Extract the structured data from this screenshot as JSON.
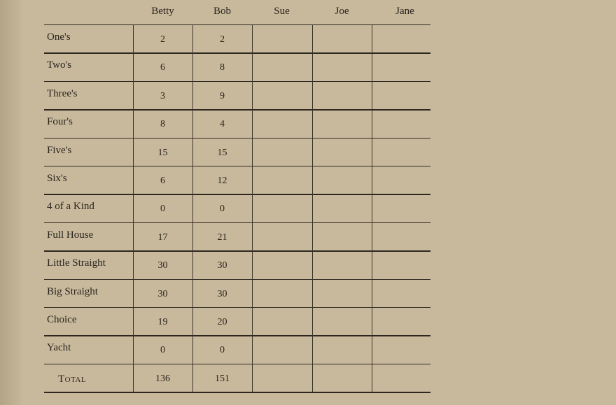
{
  "columns": [
    "Betty",
    "Bob",
    "Sue",
    "Joe",
    "Jane"
  ],
  "rows": [
    {
      "label": "One's",
      "values": [
        "2",
        "2",
        "",
        "",
        ""
      ]
    },
    {
      "label": "Two's",
      "values": [
        "6",
        "8",
        "",
        "",
        ""
      ]
    },
    {
      "label": "Three's",
      "values": [
        "3",
        "9",
        "",
        "",
        ""
      ]
    },
    {
      "label": "Four's",
      "values": [
        "8",
        "4",
        "",
        "",
        ""
      ]
    },
    {
      "label": "Five's",
      "values": [
        "15",
        "15",
        "",
        "",
        ""
      ]
    },
    {
      "label": "Six's",
      "values": [
        "6",
        "12",
        "",
        "",
        ""
      ]
    },
    {
      "label": "4 of a Kind",
      "values": [
        "0",
        "0",
        "",
        "",
        ""
      ]
    },
    {
      "label": "Full House",
      "values": [
        "17",
        "21",
        "",
        "",
        ""
      ]
    },
    {
      "label": "Little Straight",
      "values": [
        "30",
        "30",
        "",
        "",
        ""
      ]
    },
    {
      "label": "Big Straight",
      "values": [
        "30",
        "30",
        "",
        "",
        ""
      ]
    },
    {
      "label": "Choice",
      "values": [
        "19",
        "20",
        "",
        "",
        ""
      ]
    },
    {
      "label": "Yacht",
      "values": [
        "0",
        "0",
        "",
        "",
        ""
      ]
    },
    {
      "label": "Total",
      "values": [
        "136",
        "151",
        "",
        "",
        ""
      ]
    }
  ]
}
